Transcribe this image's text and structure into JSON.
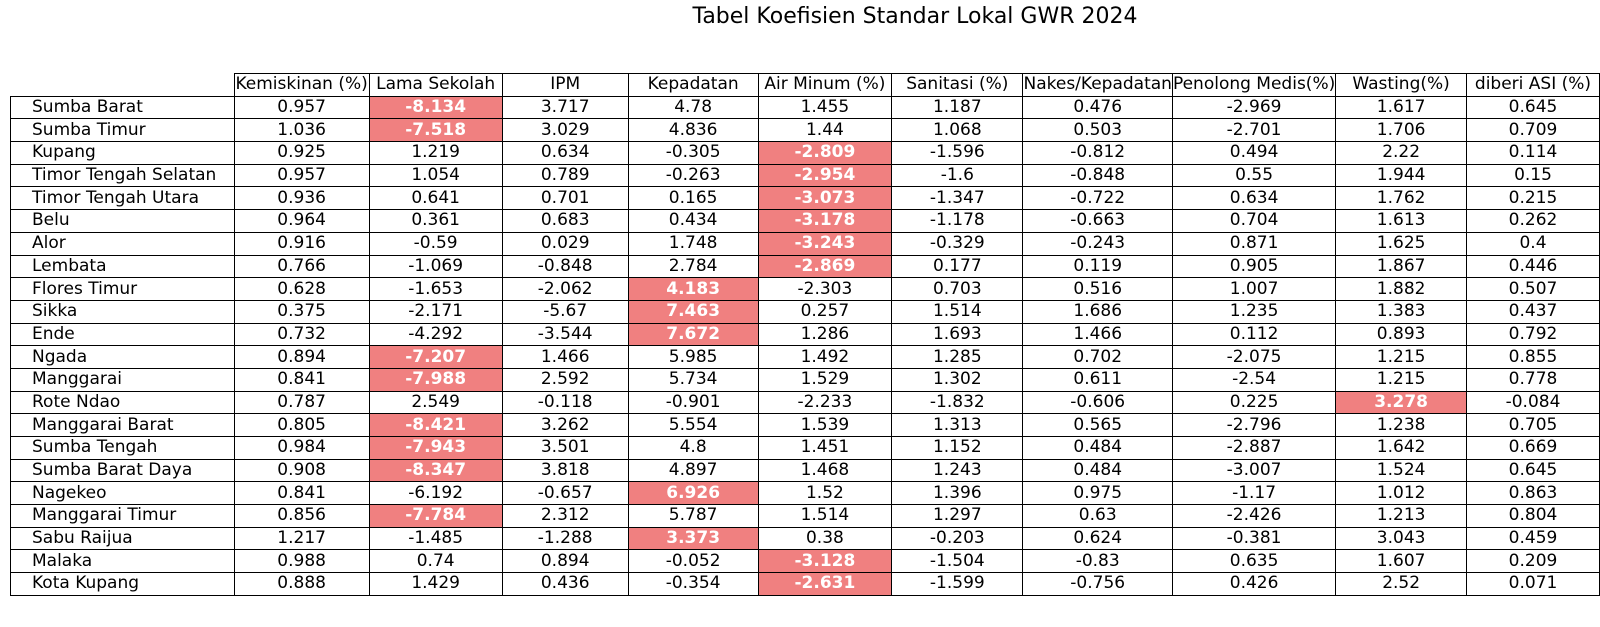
{
  "title": "Tabel Koefisien Standar Lokal GWR 2024",
  "highlight_color": "#f08080",
  "chart_data": {
    "type": "table",
    "title": "Tabel Koefisien Standar Lokal GWR 2024",
    "columns": [
      "Kemiskinan (%)",
      "Lama Sekolah",
      "IPM",
      "Kepadatan",
      "Air Minum (%)",
      "Sanitasi (%)",
      "Nakes/Kepadatan",
      "Penolong Medis(%)",
      "Wasting(%)",
      "diberi ASI (%)"
    ],
    "rows": [
      {
        "region": "Sumba Barat",
        "values": [
          "0.957",
          "-8.134",
          "3.717",
          "4.78",
          "1.455",
          "1.187",
          "0.476",
          "-2.969",
          "1.617",
          "0.645"
        ],
        "highlight": [
          1
        ]
      },
      {
        "region": "Sumba Timur",
        "values": [
          "1.036",
          "-7.518",
          "3.029",
          "4.836",
          "1.44",
          "1.068",
          "0.503",
          "-2.701",
          "1.706",
          "0.709"
        ],
        "highlight": [
          1
        ]
      },
      {
        "region": "Kupang",
        "values": [
          "0.925",
          "1.219",
          "0.634",
          "-0.305",
          "-2.809",
          "-1.596",
          "-0.812",
          "0.494",
          "2.22",
          "0.114"
        ],
        "highlight": [
          4
        ]
      },
      {
        "region": "Timor Tengah Selatan",
        "values": [
          "0.957",
          "1.054",
          "0.789",
          "-0.263",
          "-2.954",
          "-1.6",
          "-0.848",
          "0.55",
          "1.944",
          "0.15"
        ],
        "highlight": [
          4
        ]
      },
      {
        "region": "Timor Tengah Utara",
        "values": [
          "0.936",
          "0.641",
          "0.701",
          "0.165",
          "-3.073",
          "-1.347",
          "-0.722",
          "0.634",
          "1.762",
          "0.215"
        ],
        "highlight": [
          4
        ]
      },
      {
        "region": "Belu",
        "values": [
          "0.964",
          "0.361",
          "0.683",
          "0.434",
          "-3.178",
          "-1.178",
          "-0.663",
          "0.704",
          "1.613",
          "0.262"
        ],
        "highlight": [
          4
        ]
      },
      {
        "region": "Alor",
        "values": [
          "0.916",
          "-0.59",
          "0.029",
          "1.748",
          "-3.243",
          "-0.329",
          "-0.243",
          "0.871",
          "1.625",
          "0.4"
        ],
        "highlight": [
          4
        ]
      },
      {
        "region": "Lembata",
        "values": [
          "0.766",
          "-1.069",
          "-0.848",
          "2.784",
          "-2.869",
          "0.177",
          "0.119",
          "0.905",
          "1.867",
          "0.446"
        ],
        "highlight": [
          4
        ]
      },
      {
        "region": "Flores Timur",
        "values": [
          "0.628",
          "-1.653",
          "-2.062",
          "4.183",
          "-2.303",
          "0.703",
          "0.516",
          "1.007",
          "1.882",
          "0.507"
        ],
        "highlight": [
          3
        ]
      },
      {
        "region": "Sikka",
        "values": [
          "0.375",
          "-2.171",
          "-5.67",
          "7.463",
          "0.257",
          "1.514",
          "1.686",
          "1.235",
          "1.383",
          "0.437"
        ],
        "highlight": [
          3
        ]
      },
      {
        "region": "Ende",
        "values": [
          "0.732",
          "-4.292",
          "-3.544",
          "7.672",
          "1.286",
          "1.693",
          "1.466",
          "0.112",
          "0.893",
          "0.792"
        ],
        "highlight": [
          3
        ]
      },
      {
        "region": "Ngada",
        "values": [
          "0.894",
          "-7.207",
          "1.466",
          "5.985",
          "1.492",
          "1.285",
          "0.702",
          "-2.075",
          "1.215",
          "0.855"
        ],
        "highlight": [
          1
        ]
      },
      {
        "region": "Manggarai",
        "values": [
          "0.841",
          "-7.988",
          "2.592",
          "5.734",
          "1.529",
          "1.302",
          "0.611",
          "-2.54",
          "1.215",
          "0.778"
        ],
        "highlight": [
          1
        ]
      },
      {
        "region": "Rote Ndao",
        "values": [
          "0.787",
          "2.549",
          "-0.118",
          "-0.901",
          "-2.233",
          "-1.832",
          "-0.606",
          "0.225",
          "3.278",
          "-0.084"
        ],
        "highlight": [
          8
        ]
      },
      {
        "region": "Manggarai Barat",
        "values": [
          "0.805",
          "-8.421",
          "3.262",
          "5.554",
          "1.539",
          "1.313",
          "0.565",
          "-2.796",
          "1.238",
          "0.705"
        ],
        "highlight": [
          1
        ]
      },
      {
        "region": "Sumba Tengah",
        "values": [
          "0.984",
          "-7.943",
          "3.501",
          "4.8",
          "1.451",
          "1.152",
          "0.484",
          "-2.887",
          "1.642",
          "0.669"
        ],
        "highlight": [
          1
        ]
      },
      {
        "region": "Sumba Barat Daya",
        "values": [
          "0.908",
          "-8.347",
          "3.818",
          "4.897",
          "1.468",
          "1.243",
          "0.484",
          "-3.007",
          "1.524",
          "0.645"
        ],
        "highlight": [
          1
        ]
      },
      {
        "region": "Nagekeo",
        "values": [
          "0.841",
          "-6.192",
          "-0.657",
          "6.926",
          "1.52",
          "1.396",
          "0.975",
          "-1.17",
          "1.012",
          "0.863"
        ],
        "highlight": [
          3
        ]
      },
      {
        "region": "Manggarai Timur",
        "values": [
          "0.856",
          "-7.784",
          "2.312",
          "5.787",
          "1.514",
          "1.297",
          "0.63",
          "-2.426",
          "1.213",
          "0.804"
        ],
        "highlight": [
          1
        ]
      },
      {
        "region": "Sabu Raijua",
        "values": [
          "1.217",
          "-1.485",
          "-1.288",
          "3.373",
          "0.38",
          "-0.203",
          "0.624",
          "-0.381",
          "3.043",
          "0.459"
        ],
        "highlight": [
          3
        ]
      },
      {
        "region": "Malaka",
        "values": [
          "0.988",
          "0.74",
          "0.894",
          "-0.052",
          "-3.128",
          "-1.504",
          "-0.83",
          "0.635",
          "1.607",
          "0.209"
        ],
        "highlight": [
          4
        ]
      },
      {
        "region": "Kota Kupang",
        "values": [
          "0.888",
          "1.429",
          "0.436",
          "-0.354",
          "-2.631",
          "-1.599",
          "-0.756",
          "0.426",
          "2.52",
          "0.071"
        ],
        "highlight": [
          4
        ]
      }
    ]
  }
}
